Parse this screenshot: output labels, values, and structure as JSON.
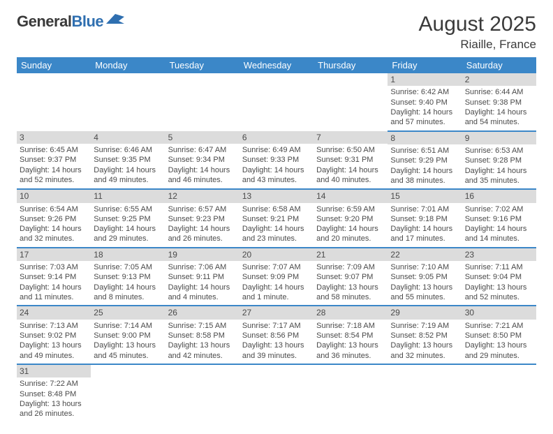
{
  "logo": {
    "part1": "General",
    "part2": "Blue"
  },
  "title": "August 2025",
  "subtitle": "Riaille, France",
  "colors": {
    "header_bg": "#3b87c8",
    "header_text": "#ffffff",
    "daynum_bg": "#dcdcdc",
    "row_border": "#3b87c8",
    "text": "#4a4a4a",
    "logo_blue": "#2f6fb0"
  },
  "weekdays": [
    "Sunday",
    "Monday",
    "Tuesday",
    "Wednesday",
    "Thursday",
    "Friday",
    "Saturday"
  ],
  "weeks": [
    [
      null,
      null,
      null,
      null,
      null,
      {
        "n": "1",
        "rise": "Sunrise: 6:42 AM",
        "set": "Sunset: 9:40 PM",
        "day": "Daylight: 14 hours and 57 minutes."
      },
      {
        "n": "2",
        "rise": "Sunrise: 6:44 AM",
        "set": "Sunset: 9:38 PM",
        "day": "Daylight: 14 hours and 54 minutes."
      }
    ],
    [
      {
        "n": "3",
        "rise": "Sunrise: 6:45 AM",
        "set": "Sunset: 9:37 PM",
        "day": "Daylight: 14 hours and 52 minutes."
      },
      {
        "n": "4",
        "rise": "Sunrise: 6:46 AM",
        "set": "Sunset: 9:35 PM",
        "day": "Daylight: 14 hours and 49 minutes."
      },
      {
        "n": "5",
        "rise": "Sunrise: 6:47 AM",
        "set": "Sunset: 9:34 PM",
        "day": "Daylight: 14 hours and 46 minutes."
      },
      {
        "n": "6",
        "rise": "Sunrise: 6:49 AM",
        "set": "Sunset: 9:33 PM",
        "day": "Daylight: 14 hours and 43 minutes."
      },
      {
        "n": "7",
        "rise": "Sunrise: 6:50 AM",
        "set": "Sunset: 9:31 PM",
        "day": "Daylight: 14 hours and 40 minutes."
      },
      {
        "n": "8",
        "rise": "Sunrise: 6:51 AM",
        "set": "Sunset: 9:29 PM",
        "day": "Daylight: 14 hours and 38 minutes."
      },
      {
        "n": "9",
        "rise": "Sunrise: 6:53 AM",
        "set": "Sunset: 9:28 PM",
        "day": "Daylight: 14 hours and 35 minutes."
      }
    ],
    [
      {
        "n": "10",
        "rise": "Sunrise: 6:54 AM",
        "set": "Sunset: 9:26 PM",
        "day": "Daylight: 14 hours and 32 minutes."
      },
      {
        "n": "11",
        "rise": "Sunrise: 6:55 AM",
        "set": "Sunset: 9:25 PM",
        "day": "Daylight: 14 hours and 29 minutes."
      },
      {
        "n": "12",
        "rise": "Sunrise: 6:57 AM",
        "set": "Sunset: 9:23 PM",
        "day": "Daylight: 14 hours and 26 minutes."
      },
      {
        "n": "13",
        "rise": "Sunrise: 6:58 AM",
        "set": "Sunset: 9:21 PM",
        "day": "Daylight: 14 hours and 23 minutes."
      },
      {
        "n": "14",
        "rise": "Sunrise: 6:59 AM",
        "set": "Sunset: 9:20 PM",
        "day": "Daylight: 14 hours and 20 minutes."
      },
      {
        "n": "15",
        "rise": "Sunrise: 7:01 AM",
        "set": "Sunset: 9:18 PM",
        "day": "Daylight: 14 hours and 17 minutes."
      },
      {
        "n": "16",
        "rise": "Sunrise: 7:02 AM",
        "set": "Sunset: 9:16 PM",
        "day": "Daylight: 14 hours and 14 minutes."
      }
    ],
    [
      {
        "n": "17",
        "rise": "Sunrise: 7:03 AM",
        "set": "Sunset: 9:14 PM",
        "day": "Daylight: 14 hours and 11 minutes."
      },
      {
        "n": "18",
        "rise": "Sunrise: 7:05 AM",
        "set": "Sunset: 9:13 PM",
        "day": "Daylight: 14 hours and 8 minutes."
      },
      {
        "n": "19",
        "rise": "Sunrise: 7:06 AM",
        "set": "Sunset: 9:11 PM",
        "day": "Daylight: 14 hours and 4 minutes."
      },
      {
        "n": "20",
        "rise": "Sunrise: 7:07 AM",
        "set": "Sunset: 9:09 PM",
        "day": "Daylight: 14 hours and 1 minute."
      },
      {
        "n": "21",
        "rise": "Sunrise: 7:09 AM",
        "set": "Sunset: 9:07 PM",
        "day": "Daylight: 13 hours and 58 minutes."
      },
      {
        "n": "22",
        "rise": "Sunrise: 7:10 AM",
        "set": "Sunset: 9:05 PM",
        "day": "Daylight: 13 hours and 55 minutes."
      },
      {
        "n": "23",
        "rise": "Sunrise: 7:11 AM",
        "set": "Sunset: 9:04 PM",
        "day": "Daylight: 13 hours and 52 minutes."
      }
    ],
    [
      {
        "n": "24",
        "rise": "Sunrise: 7:13 AM",
        "set": "Sunset: 9:02 PM",
        "day": "Daylight: 13 hours and 49 minutes."
      },
      {
        "n": "25",
        "rise": "Sunrise: 7:14 AM",
        "set": "Sunset: 9:00 PM",
        "day": "Daylight: 13 hours and 45 minutes."
      },
      {
        "n": "26",
        "rise": "Sunrise: 7:15 AM",
        "set": "Sunset: 8:58 PM",
        "day": "Daylight: 13 hours and 42 minutes."
      },
      {
        "n": "27",
        "rise": "Sunrise: 7:17 AM",
        "set": "Sunset: 8:56 PM",
        "day": "Daylight: 13 hours and 39 minutes."
      },
      {
        "n": "28",
        "rise": "Sunrise: 7:18 AM",
        "set": "Sunset: 8:54 PM",
        "day": "Daylight: 13 hours and 36 minutes."
      },
      {
        "n": "29",
        "rise": "Sunrise: 7:19 AM",
        "set": "Sunset: 8:52 PM",
        "day": "Daylight: 13 hours and 32 minutes."
      },
      {
        "n": "30",
        "rise": "Sunrise: 7:21 AM",
        "set": "Sunset: 8:50 PM",
        "day": "Daylight: 13 hours and 29 minutes."
      }
    ],
    [
      {
        "n": "31",
        "rise": "Sunrise: 7:22 AM",
        "set": "Sunset: 8:48 PM",
        "day": "Daylight: 13 hours and 26 minutes."
      },
      null,
      null,
      null,
      null,
      null,
      null
    ]
  ]
}
